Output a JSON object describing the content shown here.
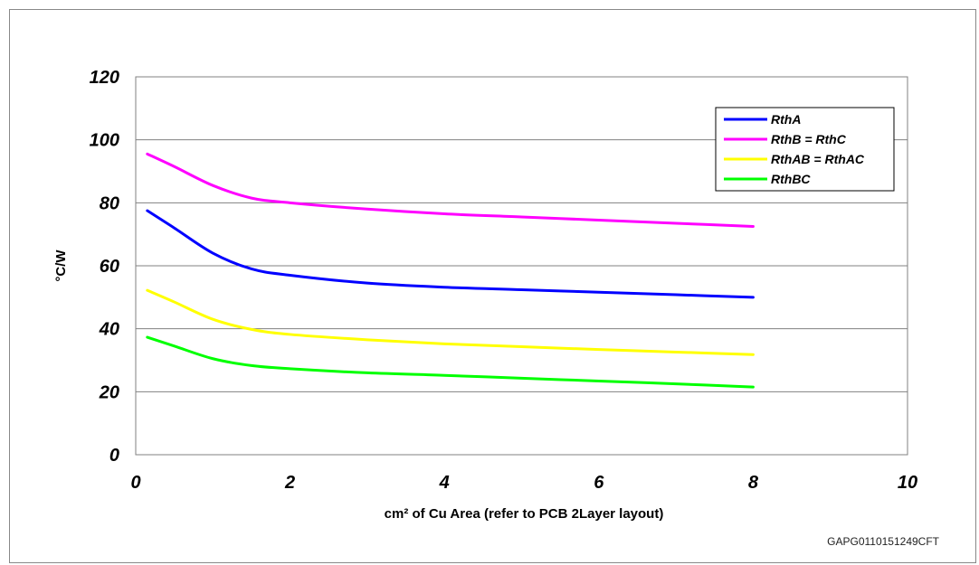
{
  "chart_data": {
    "type": "line",
    "title": "",
    "xlabel": "cm² of Cu Area (refer to PCB 2Layer layout)",
    "ylabel": "°C/W",
    "xlim": [
      0,
      10
    ],
    "ylim": [
      0,
      120
    ],
    "x_ticks": [
      0,
      2,
      4,
      6,
      8,
      10
    ],
    "y_ticks": [
      0,
      20,
      40,
      60,
      80,
      100,
      120
    ],
    "grid": "horizontal",
    "legend_position": "top-right",
    "series": [
      {
        "name": "RthA",
        "color": "#0000ff",
        "x": [
          0.15,
          0.5,
          1,
          1.5,
          2,
          3,
          4,
          5,
          6,
          7,
          8
        ],
        "y": [
          77.5,
          72,
          64,
          59,
          57,
          54.5,
          53.2,
          52.4,
          51.6,
          50.8,
          50
        ]
      },
      {
        "name": "RthB = RthC",
        "color": "#ff00ff",
        "x": [
          0.15,
          0.5,
          1,
          1.5,
          2,
          3,
          4,
          5,
          6,
          7,
          8
        ],
        "y": [
          95.5,
          91.5,
          85.5,
          81.5,
          80,
          78,
          76.5,
          75.5,
          74.5,
          73.5,
          72.5
        ]
      },
      {
        "name": "RthAB = RthAC",
        "color": "#ffff00",
        "x": [
          0.15,
          0.5,
          1,
          1.5,
          2,
          3,
          4,
          5,
          6,
          7,
          8
        ],
        "y": [
          52.2,
          48.5,
          43,
          39.8,
          38.2,
          36.5,
          35.2,
          34.3,
          33.4,
          32.6,
          31.8
        ]
      },
      {
        "name": "RthBC",
        "color": "#00ff00",
        "x": [
          0.15,
          0.5,
          1,
          1.5,
          2,
          3,
          4,
          5,
          6,
          7,
          8
        ],
        "y": [
          37.3,
          34.5,
          30.5,
          28.3,
          27.3,
          26,
          25.2,
          24.3,
          23.4,
          22.5,
          21.5
        ]
      }
    ]
  },
  "figure_code": "GAPG0110151249CFT"
}
